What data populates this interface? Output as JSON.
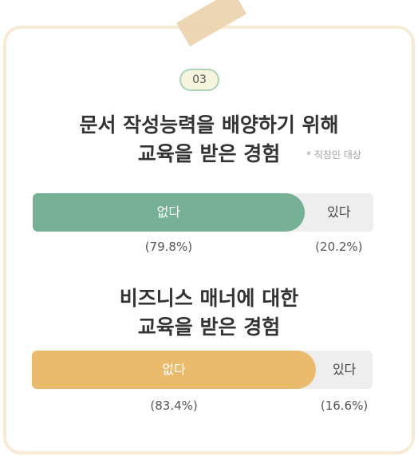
{
  "badge": "03",
  "charts": [
    {
      "title_line1": "문서 작성능력을 배양하기 위해",
      "title_line2": "교육을 받은 경험",
      "note": "* 직장인 대상",
      "fill_color": "#76b095",
      "label_a": "없다",
      "label_b": "있다",
      "pct_a": "(79.8%)",
      "pct_b": "(20.2%)"
    },
    {
      "title_line1": "비즈니스 매너에 대한",
      "title_line2": "교육을 받은 경험",
      "fill_color": "#eabb6d",
      "label_a": "없다",
      "label_b": "있다",
      "pct_a": "(83.4%)",
      "pct_b": "(16.6%)"
    }
  ],
  "chart_data": [
    {
      "type": "bar",
      "title": "문서 작성능력을 배양하기 위해 교육을 받은 경험",
      "categories": [
        "없다",
        "있다"
      ],
      "values": [
        79.8,
        20.2
      ]
    },
    {
      "type": "bar",
      "title": "비즈니스 매너에 대한 교육을 받은 경험",
      "categories": [
        "없다",
        "있다"
      ],
      "values": [
        83.4,
        16.6
      ]
    }
  ]
}
